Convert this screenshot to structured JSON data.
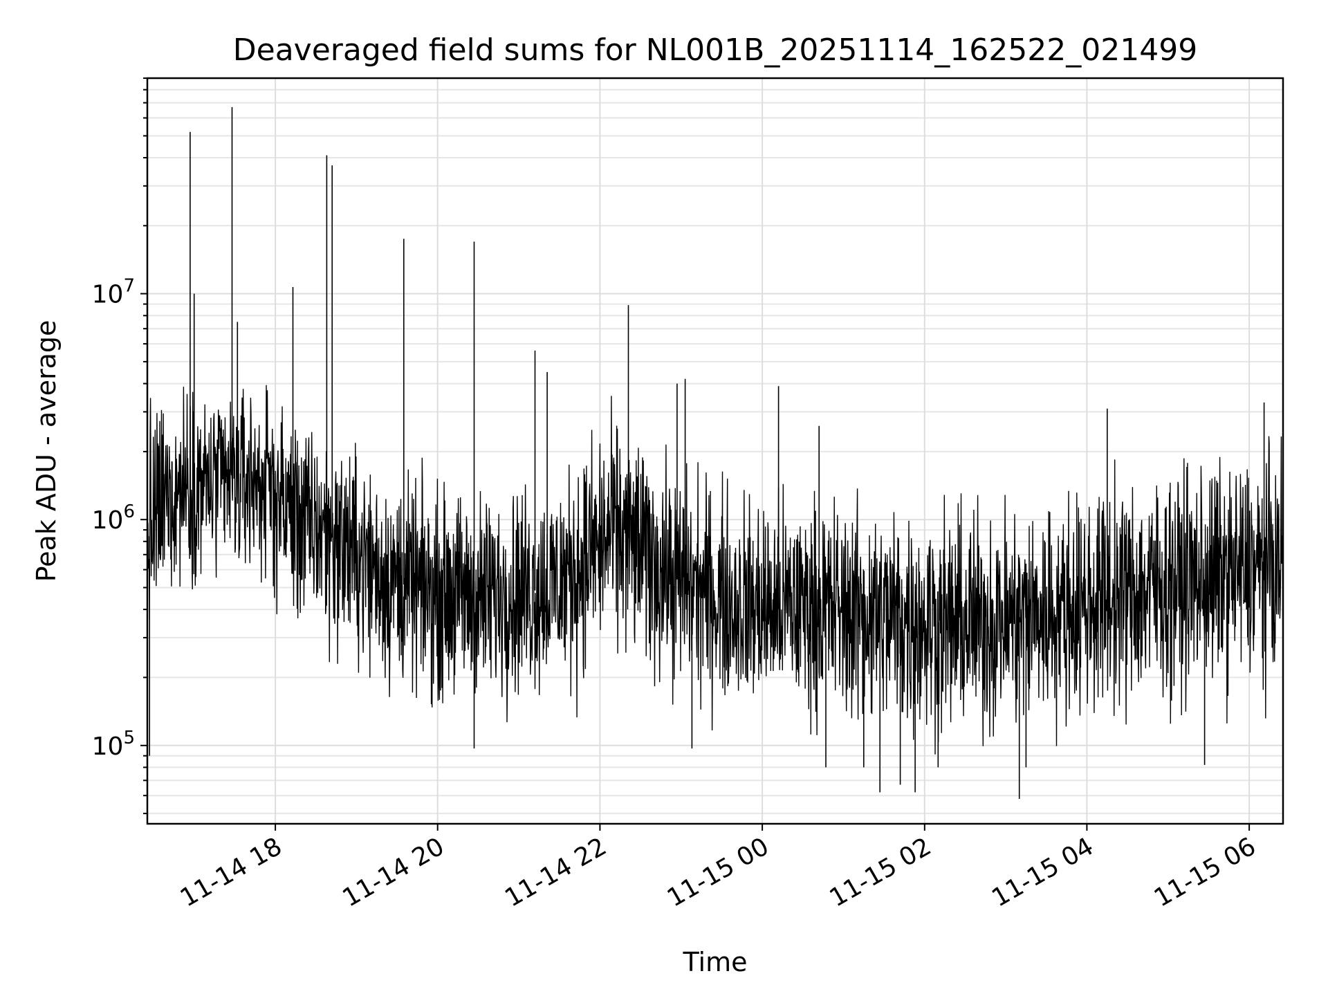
{
  "chart_data": {
    "type": "line",
    "title": "Deaveraged field sums for NL001B_20251114_162522_021499",
    "xlabel": "Time",
    "ylabel": "Peak ADU - average",
    "yscale": "log",
    "ylim": [
      45000,
      90000000
    ],
    "xlim": [
      "2025-11-14 16:25:22",
      "2025-11-15 06:25:00"
    ],
    "x_ticks": [
      {
        "t": "2025-11-14 18:00",
        "label": "11-14 18"
      },
      {
        "t": "2025-11-14 20:00",
        "label": "11-14 20"
      },
      {
        "t": "2025-11-14 22:00",
        "label": "11-14 22"
      },
      {
        "t": "2025-11-15 00:00",
        "label": "11-15 00"
      },
      {
        "t": "2025-11-15 02:00",
        "label": "11-15 02"
      },
      {
        "t": "2025-11-15 04:00",
        "label": "11-15 04"
      },
      {
        "t": "2025-11-15 06:00",
        "label": "11-15 06"
      }
    ],
    "y_ticks": [
      {
        "value": 100000,
        "base": "10",
        "exp": "5"
      },
      {
        "value": 1000000,
        "base": "10",
        "exp": "6"
      },
      {
        "value": 10000000,
        "base": "10",
        "exp": "7"
      }
    ],
    "grid": true,
    "legend": "none",
    "series": [
      {
        "color": "#000000",
        "x": [
          "2025-11-14 16:25",
          "2025-11-14 16:40",
          "2025-11-14 16:55",
          "2025-11-14 17:10",
          "2025-11-14 17:25",
          "2025-11-14 17:40",
          "2025-11-14 17:55",
          "2025-11-14 18:10",
          "2025-11-14 18:25",
          "2025-11-14 18:40",
          "2025-11-14 18:55",
          "2025-11-14 19:10",
          "2025-11-14 19:25",
          "2025-11-14 19:40",
          "2025-11-14 19:55",
          "2025-11-14 20:10",
          "2025-11-14 20:25",
          "2025-11-14 20:40",
          "2025-11-14 20:55",
          "2025-11-14 21:10",
          "2025-11-14 21:25",
          "2025-11-14 21:40",
          "2025-11-14 21:55",
          "2025-11-14 22:10",
          "2025-11-14 22:25",
          "2025-11-14 22:40",
          "2025-11-14 22:55",
          "2025-11-14 23:10",
          "2025-11-14 23:25",
          "2025-11-14 23:40",
          "2025-11-14 23:55",
          "2025-11-15 00:10",
          "2025-11-15 00:25",
          "2025-11-15 00:40",
          "2025-11-15 00:55",
          "2025-11-15 01:10",
          "2025-11-15 01:25",
          "2025-11-15 01:40",
          "2025-11-15 01:55",
          "2025-11-15 02:10",
          "2025-11-15 02:25",
          "2025-11-15 02:40",
          "2025-11-15 02:55",
          "2025-11-15 03:10",
          "2025-11-15 03:25",
          "2025-11-15 03:40",
          "2025-11-15 03:55",
          "2025-11-15 04:10",
          "2025-11-15 04:25",
          "2025-11-15 04:40",
          "2025-11-15 04:55",
          "2025-11-15 05:10",
          "2025-11-15 05:25",
          "2025-11-15 05:40",
          "2025-11-15 05:55",
          "2025-11-15 06:10",
          "2025-11-15 06:25"
        ],
        "y": [
          800000,
          1200000,
          1500000,
          1400000,
          1500000,
          1600000,
          1500000,
          1200000,
          1000000,
          900000,
          800000,
          650000,
          550000,
          500000,
          480000,
          470000,
          450000,
          460000,
          500000,
          480000,
          520000,
          600000,
          750000,
          900000,
          800000,
          650000,
          550000,
          500000,
          450000,
          420000,
          400000,
          400000,
          410000,
          400000,
          410000,
          390000,
          380000,
          370000,
          360000,
          350000,
          340000,
          350000,
          360000,
          370000,
          380000,
          400000,
          420000,
          440000,
          460000,
          480000,
          500000,
          520000,
          540000,
          560000,
          580000,
          600000,
          620000
        ],
        "spread_low": [
          200000,
          400000,
          450000,
          450000,
          400000,
          400000,
          400000,
          250000,
          220000,
          200000,
          180000,
          160000,
          140000,
          140000,
          130000,
          130000,
          120000,
          120000,
          130000,
          130000,
          130000,
          140000,
          160000,
          200000,
          180000,
          160000,
          140000,
          130000,
          120000,
          120000,
          110000,
          110000,
          110000,
          110000,
          100000,
          95000,
          90000,
          90000,
          85000,
          85000,
          80000,
          85000,
          85000,
          90000,
          90000,
          100000,
          100000,
          110000,
          110000,
          120000,
          120000,
          130000,
          130000,
          140000,
          140000,
          150000,
          150000
        ],
        "spread_high": [
          4000000,
          5000000,
          5000000,
          4500000,
          4500000,
          4500000,
          4000000,
          3500000,
          3000000,
          2800000,
          2500000,
          2200000,
          2000000,
          1800000,
          1700000,
          1700000,
          1600000,
          1700000,
          1800000,
          1800000,
          1900000,
          2200000,
          2800000,
          3500000,
          3000000,
          2500000,
          2200000,
          2000000,
          1800000,
          1700000,
          1700000,
          1600000,
          1600000,
          1600000,
          1600000,
          1550000,
          1500000,
          1500000,
          1450000,
          1450000,
          1400000,
          1450000,
          1450000,
          1500000,
          1550000,
          1600000,
          1700000,
          1800000,
          1900000,
          2000000,
          2100000,
          2200000,
          2300000,
          2300000,
          2400000,
          2500000,
          2500000
        ],
        "spikes": [
          {
            "t": "2025-11-14 16:57",
            "v": 52000000
          },
          {
            "t": "2025-11-14 17:00",
            "v": 10000000
          },
          {
            "t": "2025-11-14 17:28",
            "v": 67000000
          },
          {
            "t": "2025-11-14 17:32",
            "v": 7500000
          },
          {
            "t": "2025-11-14 18:13",
            "v": 10700000
          },
          {
            "t": "2025-11-14 18:38",
            "v": 41000000
          },
          {
            "t": "2025-11-14 18:42",
            "v": 37000000
          },
          {
            "t": "2025-11-14 19:35",
            "v": 17500000
          },
          {
            "t": "2025-11-14 20:27",
            "v": 17000000
          },
          {
            "t": "2025-11-14 21:12",
            "v": 5600000
          },
          {
            "t": "2025-11-14 21:21",
            "v": 4500000
          },
          {
            "t": "2025-11-14 22:21",
            "v": 8900000
          },
          {
            "t": "2025-11-14 22:57",
            "v": 4000000
          },
          {
            "t": "2025-11-14 23:03",
            "v": 4200000
          },
          {
            "t": "2025-11-15 00:12",
            "v": 3900000
          },
          {
            "t": "2025-11-15 00:42",
            "v": 2600000
          },
          {
            "t": "2025-11-15 04:15",
            "v": 3100000
          },
          {
            "t": "2025-11-15 06:11",
            "v": 3300000
          }
        ],
        "dips": [
          {
            "t": "2025-11-14 16:27",
            "v": 90000
          },
          {
            "t": "2025-11-14 20:27",
            "v": 97000
          },
          {
            "t": "2025-11-14 23:08",
            "v": 97000
          },
          {
            "t": "2025-11-15 00:47",
            "v": 80000
          },
          {
            "t": "2025-11-15 01:15",
            "v": 80000
          },
          {
            "t": "2025-11-15 01:27",
            "v": 62000
          },
          {
            "t": "2025-11-15 01:42",
            "v": 67000
          },
          {
            "t": "2025-11-15 01:53",
            "v": 62000
          },
          {
            "t": "2025-11-15 02:10",
            "v": 80000
          },
          {
            "t": "2025-11-15 03:10",
            "v": 58000
          },
          {
            "t": "2025-11-15 03:15",
            "v": 80000
          },
          {
            "t": "2025-11-15 05:27",
            "v": 82000
          }
        ]
      }
    ]
  }
}
